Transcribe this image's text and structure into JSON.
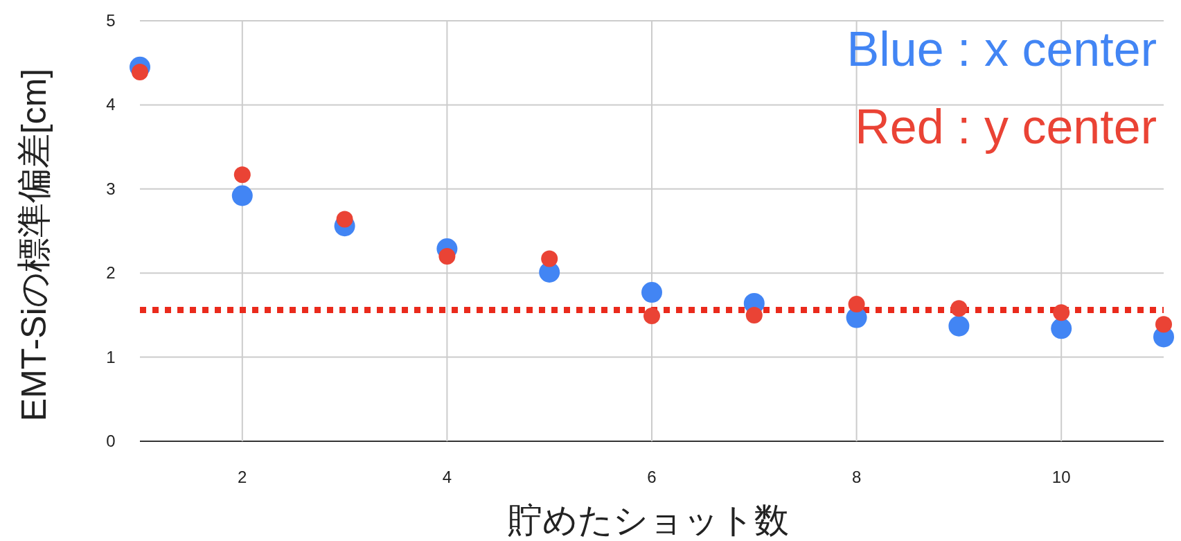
{
  "chart_data": {
    "type": "scatter",
    "xlabel": "貯めたショット数",
    "ylabel": "EMT-Siの標準偏差[cm]",
    "x": [
      1,
      2,
      3,
      4,
      5,
      6,
      7,
      8,
      9,
      10,
      11
    ],
    "series": [
      {
        "name": "Blue : x center",
        "color": "#4285f4",
        "values": [
          4.45,
          2.92,
          2.56,
          2.29,
          2.01,
          1.77,
          1.64,
          1.47,
          1.37,
          1.34,
          1.24
        ]
      },
      {
        "name": "Red : y center",
        "color": "#ea4335",
        "values": [
          4.39,
          3.17,
          2.64,
          2.2,
          2.17,
          1.49,
          1.5,
          1.63,
          1.58,
          1.53,
          1.39
        ]
      }
    ],
    "xlim": [
      1,
      11
    ],
    "xticks": [
      2,
      4,
      6,
      8,
      10
    ],
    "ylim": [
      0,
      5
    ],
    "yticks": [
      0,
      1,
      2,
      3,
      4,
      5
    ],
    "grid": true,
    "marker": "circle",
    "legend": "top right",
    "ref_lines": [
      {
        "axis": "y",
        "value": 1.56,
        "color": "#ea2a1c",
        "line_style": "dotted"
      }
    ]
  }
}
